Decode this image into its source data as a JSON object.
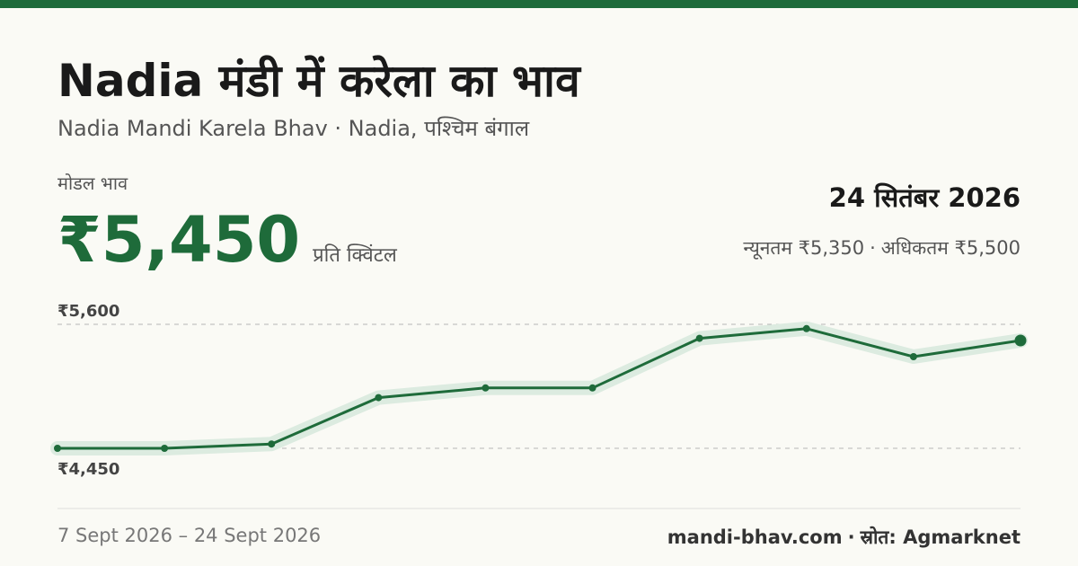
{
  "header": {
    "title": "Nadia मंडी में करेला का भाव",
    "subtitle": "Nadia Mandi Karela Bhav · Nadia, पश्चिम बंगाल"
  },
  "price": {
    "label": "मोडल भाव",
    "value": "₹5,450",
    "unit": "प्रति क्विंटल"
  },
  "date": "24 सितंबर 2026",
  "range": {
    "min_text": "न्यूनतम ₹5,350",
    "separator": "·",
    "max_text": "अधिकतम ₹5,500"
  },
  "footer": {
    "date_range": "7 Sept 2026 – 24 Sept 2026",
    "site": "mandi-bhav.com",
    "separator": "·",
    "source": "स्रोत: Agmarknet"
  },
  "colors": {
    "accent": "#1e6b3a",
    "band": "#dcebe0",
    "gridline": "#b5b5b5"
  },
  "chart_data": {
    "type": "line",
    "x": [
      1,
      2,
      3,
      4,
      5,
      6,
      7,
      8,
      9,
      10
    ],
    "values": [
      4450,
      4450,
      4490,
      4920,
      5010,
      5010,
      5470,
      5560,
      5300,
      5450
    ],
    "ylim": [
      4450,
      5600
    ],
    "gridlines": [
      {
        "value": 5600,
        "label": "₹5,600"
      },
      {
        "value": 4450,
        "label": "₹4,450"
      }
    ],
    "grid": true,
    "legend": "none",
    "band": true
  }
}
